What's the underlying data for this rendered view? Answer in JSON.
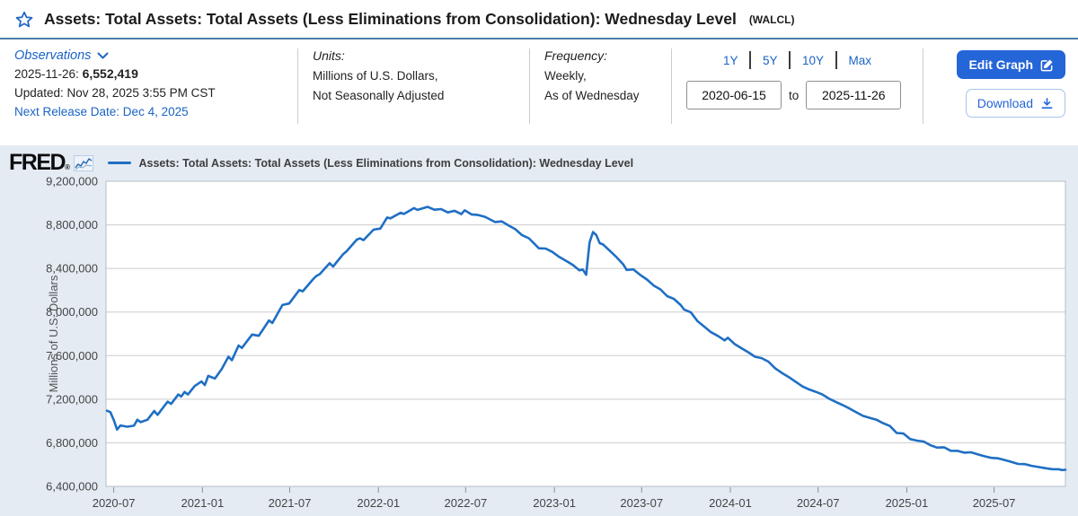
{
  "header": {
    "title": "Assets: Total Assets: Total Assets (Less Eliminations from Consolidation): Wednesday Level",
    "ticker": "(WALCL)"
  },
  "observations": {
    "label": "Observations",
    "latest_date": "2025-11-26:",
    "latest_value": "6,552,419",
    "updated": "Updated: Nov 28, 2025 3:55 PM CST",
    "next_release": "Next Release Date: Dec 4, 2025"
  },
  "units": {
    "label": "Units:",
    "line1": "Millions of U.S. Dollars,",
    "line2": "Not Seasonally Adjusted"
  },
  "frequency": {
    "label": "Frequency:",
    "line1": "Weekly,",
    "line2": "As of Wednesday"
  },
  "range": {
    "presets": [
      "1Y",
      "5Y",
      "10Y",
      "Max"
    ],
    "start": "2020-06-15",
    "to_label": "to",
    "end": "2025-11-26"
  },
  "actions": {
    "edit": "Edit Graph",
    "download": "Download"
  },
  "graph": {
    "logo": "FRED",
    "legend": "Assets: Total Assets: Total Assets (Less Eliminations from Consolidation): Wednesday Level"
  },
  "colors": {
    "accent_blue": "#1a63c4",
    "button_blue": "#2465d8",
    "line_blue": "#1f6fc4",
    "chart_bg": "#e4ebf3",
    "grid": "#cccccc",
    "plot_border": "#b4bcc4",
    "axis_text": "#444444",
    "title_rule": "#4e7da8"
  },
  "chart_data": {
    "type": "line",
    "title": "Assets: Total Assets: Total Assets (Less Eliminations from Consolidation): Wednesday Level",
    "ylabel": "Millions of U.S. Dollars",
    "ylim": [
      6400000,
      9200000
    ],
    "ytick_step": 400000,
    "grid": "horizontal",
    "legend_position": "top",
    "x_range": [
      "2020-06-15",
      "2025-11-26"
    ],
    "x_ticks": [
      {
        "date": "2020-07-01",
        "label": "2020-07"
      },
      {
        "date": "2021-01-01",
        "label": "2021-01"
      },
      {
        "date": "2021-07-01",
        "label": "2021-07"
      },
      {
        "date": "2022-01-01",
        "label": "2022-01"
      },
      {
        "date": "2022-07-01",
        "label": "2022-07"
      },
      {
        "date": "2023-01-01",
        "label": "2023-01"
      },
      {
        "date": "2023-07-01",
        "label": "2023-07"
      },
      {
        "date": "2024-01-01",
        "label": "2024-01"
      },
      {
        "date": "2024-07-01",
        "label": "2024-07"
      },
      {
        "date": "2025-01-01",
        "label": "2025-01"
      },
      {
        "date": "2025-07-01",
        "label": "2025-07"
      }
    ],
    "series": [
      {
        "name": "Assets: Total Assets: Total Assets (Less Eliminations from Consolidation): Wednesday Level",
        "color": "#1f6fc4",
        "points": [
          [
            "2020-06-17",
            7094000
          ],
          [
            "2020-06-24",
            7082000
          ],
          [
            "2020-07-01",
            7010000
          ],
          [
            "2020-07-08",
            6921000
          ],
          [
            "2020-07-15",
            6959000
          ],
          [
            "2020-07-29",
            6948000
          ],
          [
            "2020-08-12",
            6957000
          ],
          [
            "2020-08-19",
            7011000
          ],
          [
            "2020-08-26",
            6990000
          ],
          [
            "2020-09-09",
            7012000
          ],
          [
            "2020-09-23",
            7093000
          ],
          [
            "2020-09-30",
            7056000
          ],
          [
            "2020-10-14",
            7138000
          ],
          [
            "2020-10-21",
            7177000
          ],
          [
            "2020-10-28",
            7157000
          ],
          [
            "2020-11-12",
            7243000
          ],
          [
            "2020-11-18",
            7224000
          ],
          [
            "2020-11-25",
            7266000
          ],
          [
            "2020-12-02",
            7243000
          ],
          [
            "2020-12-16",
            7321000
          ],
          [
            "2020-12-30",
            7363000
          ],
          [
            "2021-01-06",
            7330000
          ],
          [
            "2021-01-13",
            7415000
          ],
          [
            "2021-01-27",
            7390000
          ],
          [
            "2021-02-10",
            7476000
          ],
          [
            "2021-02-24",
            7590000
          ],
          [
            "2021-03-03",
            7558000
          ],
          [
            "2021-03-17",
            7693000
          ],
          [
            "2021-03-24",
            7671000
          ],
          [
            "2021-04-14",
            7793000
          ],
          [
            "2021-04-28",
            7782000
          ],
          [
            "2021-05-19",
            7923000
          ],
          [
            "2021-05-26",
            7900000
          ],
          [
            "2021-06-16",
            8064000
          ],
          [
            "2021-06-30",
            8078000
          ],
          [
            "2021-07-21",
            8202000
          ],
          [
            "2021-07-28",
            8190000
          ],
          [
            "2021-08-18",
            8298000
          ],
          [
            "2021-08-25",
            8330000
          ],
          [
            "2021-09-01",
            8347000
          ],
          [
            "2021-09-22",
            8448000
          ],
          [
            "2021-09-29",
            8418000
          ],
          [
            "2021-10-20",
            8531000
          ],
          [
            "2021-10-27",
            8558000
          ],
          [
            "2021-11-17",
            8664000
          ],
          [
            "2021-11-24",
            8676000
          ],
          [
            "2021-12-01",
            8660000
          ],
          [
            "2021-12-22",
            8756000
          ],
          [
            "2022-01-05",
            8766000
          ],
          [
            "2022-01-19",
            8867000
          ],
          [
            "2022-01-26",
            8860000
          ],
          [
            "2022-02-16",
            8911000
          ],
          [
            "2022-02-23",
            8900000
          ],
          [
            "2022-03-16",
            8954000
          ],
          [
            "2022-03-23",
            8937000
          ],
          [
            "2022-04-13",
            8965000
          ],
          [
            "2022-04-27",
            8939000
          ],
          [
            "2022-05-11",
            8945000
          ],
          [
            "2022-05-25",
            8914000
          ],
          [
            "2022-06-08",
            8929000
          ],
          [
            "2022-06-22",
            8899000
          ],
          [
            "2022-06-29",
            8934000
          ],
          [
            "2022-07-13",
            8896000
          ],
          [
            "2022-07-27",
            8890000
          ],
          [
            "2022-08-10",
            8874000
          ],
          [
            "2022-08-31",
            8826000
          ],
          [
            "2022-09-14",
            8832000
          ],
          [
            "2022-09-28",
            8795000
          ],
          [
            "2022-10-12",
            8760000
          ],
          [
            "2022-10-26",
            8705000
          ],
          [
            "2022-11-09",
            8677000
          ],
          [
            "2022-11-30",
            8585000
          ],
          [
            "2022-12-14",
            8582000
          ],
          [
            "2022-12-28",
            8551000
          ],
          [
            "2023-01-11",
            8506000
          ],
          [
            "2023-01-25",
            8470000
          ],
          [
            "2023-02-08",
            8433000
          ],
          [
            "2023-02-22",
            8383000
          ],
          [
            "2023-03-01",
            8390000
          ],
          [
            "2023-03-08",
            8342000
          ],
          [
            "2023-03-15",
            8639000
          ],
          [
            "2023-03-22",
            8734000
          ],
          [
            "2023-03-29",
            8706000
          ],
          [
            "2023-04-05",
            8632000
          ],
          [
            "2023-04-12",
            8620000
          ],
          [
            "2023-04-26",
            8563000
          ],
          [
            "2023-05-10",
            8503000
          ],
          [
            "2023-05-24",
            8436000
          ],
          [
            "2023-05-31",
            8386000
          ],
          [
            "2023-06-14",
            8391000
          ],
          [
            "2023-06-28",
            8341000
          ],
          [
            "2023-07-12",
            8298000
          ],
          [
            "2023-07-26",
            8243000
          ],
          [
            "2023-08-09",
            8208000
          ],
          [
            "2023-08-23",
            8146000
          ],
          [
            "2023-09-06",
            8120000
          ],
          [
            "2023-09-20",
            8064000
          ],
          [
            "2023-09-27",
            8023000
          ],
          [
            "2023-10-11",
            7997000
          ],
          [
            "2023-10-25",
            7916000
          ],
          [
            "2023-11-08",
            7866000
          ],
          [
            "2023-11-22",
            7815000
          ],
          [
            "2023-12-06",
            7781000
          ],
          [
            "2023-12-20",
            7740000
          ],
          [
            "2023-12-27",
            7764000
          ],
          [
            "2024-01-10",
            7706000
          ],
          [
            "2024-01-24",
            7668000
          ],
          [
            "2024-02-07",
            7631000
          ],
          [
            "2024-02-21",
            7590000
          ],
          [
            "2024-03-06",
            7577000
          ],
          [
            "2024-03-20",
            7545000
          ],
          [
            "2024-04-03",
            7484000
          ],
          [
            "2024-04-17",
            7441000
          ],
          [
            "2024-05-01",
            7404000
          ],
          [
            "2024-05-15",
            7361000
          ],
          [
            "2024-05-29",
            7319000
          ],
          [
            "2024-06-12",
            7290000
          ],
          [
            "2024-06-26",
            7268000
          ],
          [
            "2024-07-10",
            7243000
          ],
          [
            "2024-07-24",
            7205000
          ],
          [
            "2024-08-07",
            7175000
          ],
          [
            "2024-08-21",
            7146000
          ],
          [
            "2024-09-04",
            7115000
          ],
          [
            "2024-09-18",
            7080000
          ],
          [
            "2024-10-02",
            7047000
          ],
          [
            "2024-10-16",
            7029000
          ],
          [
            "2024-10-30",
            7012000
          ],
          [
            "2024-11-13",
            6980000
          ],
          [
            "2024-11-27",
            6954000
          ],
          [
            "2024-12-11",
            6890000
          ],
          [
            "2024-12-25",
            6885000
          ],
          [
            "2025-01-08",
            6834000
          ],
          [
            "2025-01-22",
            6820000
          ],
          [
            "2025-02-05",
            6812000
          ],
          [
            "2025-02-19",
            6778000
          ],
          [
            "2025-03-05",
            6756000
          ],
          [
            "2025-03-19",
            6759000
          ],
          [
            "2025-04-02",
            6727000
          ],
          [
            "2025-04-16",
            6726000
          ],
          [
            "2025-04-30",
            6710000
          ],
          [
            "2025-05-14",
            6713000
          ],
          [
            "2025-05-28",
            6694000
          ],
          [
            "2025-06-11",
            6677000
          ],
          [
            "2025-06-25",
            6662000
          ],
          [
            "2025-07-09",
            6658000
          ],
          [
            "2025-07-23",
            6642000
          ],
          [
            "2025-08-06",
            6625000
          ],
          [
            "2025-08-20",
            6606000
          ],
          [
            "2025-09-03",
            6604000
          ],
          [
            "2025-09-17",
            6589000
          ],
          [
            "2025-10-01",
            6578000
          ],
          [
            "2025-10-15",
            6567000
          ],
          [
            "2025-10-29",
            6558000
          ],
          [
            "2025-11-12",
            6557000
          ],
          [
            "2025-11-19",
            6550000
          ],
          [
            "2025-11-26",
            6552419
          ]
        ]
      }
    ]
  }
}
